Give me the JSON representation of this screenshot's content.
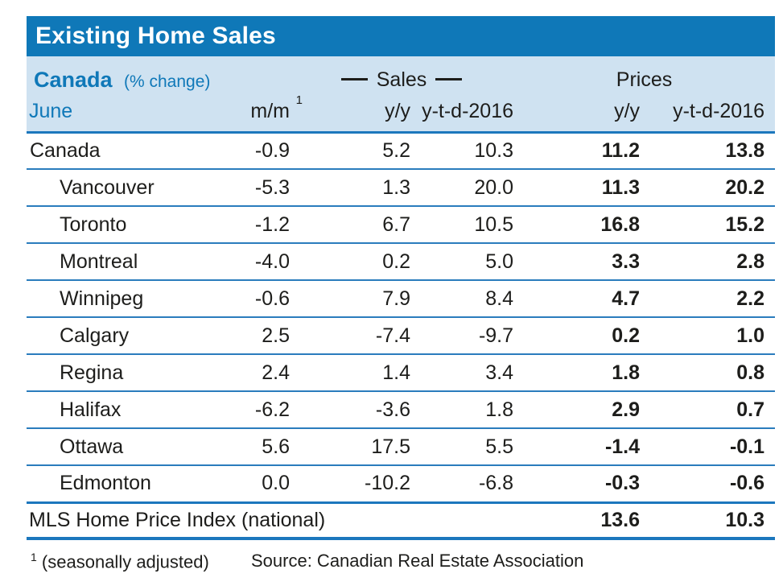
{
  "title": "Existing Home Sales",
  "colors": {
    "accent_blue": "#0f78b8",
    "band_blue": "#cfe2f1",
    "line_blue": "#1c77bd",
    "text_black": "#1d1d1b"
  },
  "header": {
    "region": "Canada",
    "unit": "(% change)",
    "group_sales": "Sales",
    "group_prices": "Prices",
    "month": "June",
    "col_mm": "m/m",
    "col_mm_sup": "1",
    "col_sales_yy": "y/y",
    "col_sales_ytd": "y-t-d-2016",
    "col_prices_yy": "y/y",
    "col_prices_ytd": "y-t-d-2016"
  },
  "rows": [
    {
      "label": "Canada",
      "mm": "-0.9",
      "sales_yy": "5.2",
      "sales_ytd": "10.3",
      "prices_yy": "11.2",
      "prices_ytd": "13.8"
    },
    {
      "label": "Vancouver",
      "mm": "-5.3",
      "sales_yy": "1.3",
      "sales_ytd": "20.0",
      "prices_yy": "11.3",
      "prices_ytd": "20.2"
    },
    {
      "label": "Toronto",
      "mm": "-1.2",
      "sales_yy": "6.7",
      "sales_ytd": "10.5",
      "prices_yy": "16.8",
      "prices_ytd": "15.2"
    },
    {
      "label": "Montreal",
      "mm": "-4.0",
      "sales_yy": "0.2",
      "sales_ytd": "5.0",
      "prices_yy": "3.3",
      "prices_ytd": "2.8"
    },
    {
      "label": "Winnipeg",
      "mm": "-0.6",
      "sales_yy": "7.9",
      "sales_ytd": "8.4",
      "prices_yy": "4.7",
      "prices_ytd": "2.2"
    },
    {
      "label": "Calgary",
      "mm": "2.5",
      "sales_yy": "-7.4",
      "sales_ytd": "-9.7",
      "prices_yy": "0.2",
      "prices_ytd": "1.0"
    },
    {
      "label": "Regina",
      "mm": "2.4",
      "sales_yy": "1.4",
      "sales_ytd": "3.4",
      "prices_yy": "1.8",
      "prices_ytd": "0.8"
    },
    {
      "label": "Halifax",
      "mm": "-6.2",
      "sales_yy": "-3.6",
      "sales_ytd": "1.8",
      "prices_yy": "2.9",
      "prices_ytd": "0.7"
    },
    {
      "label": "Ottawa",
      "mm": "5.6",
      "sales_yy": "17.5",
      "sales_ytd": "5.5",
      "prices_yy": "-1.4",
      "prices_ytd": "-0.1"
    },
    {
      "label": "Edmonton",
      "mm": "0.0",
      "sales_yy": "-10.2",
      "sales_ytd": "-6.8",
      "prices_yy": "-0.3",
      "prices_ytd": "-0.6"
    }
  ],
  "mls_row": {
    "label": "MLS Home Price Index (national)",
    "prices_yy": "13.6",
    "prices_ytd": "10.3"
  },
  "footer": {
    "footnote_sup": "1",
    "footnote": "(seasonally adjusted)",
    "source": "Source: Canadian Real Estate Association"
  },
  "chart_data": {
    "type": "table",
    "title": "Existing Home Sales",
    "subtitle": "Canada (% change), June",
    "column_groups": [
      "Sales",
      "Prices"
    ],
    "columns": [
      "m/m (seasonally adjusted)",
      "Sales y/y",
      "Sales y-t-d-2016",
      "Prices y/y",
      "Prices y-t-d-2016"
    ],
    "categories": [
      "Canada",
      "Vancouver",
      "Toronto",
      "Montreal",
      "Winnipeg",
      "Calgary",
      "Regina",
      "Halifax",
      "Ottawa",
      "Edmonton"
    ],
    "series": [
      {
        "name": "m/m",
        "values": [
          -0.9,
          -5.3,
          -1.2,
          -4.0,
          -0.6,
          2.5,
          2.4,
          -6.2,
          5.6,
          0.0
        ]
      },
      {
        "name": "Sales y/y",
        "values": [
          5.2,
          1.3,
          6.7,
          0.2,
          7.9,
          -7.4,
          1.4,
          -3.6,
          17.5,
          -10.2
        ]
      },
      {
        "name": "Sales y-t-d-2016",
        "values": [
          10.3,
          20.0,
          10.5,
          5.0,
          8.4,
          -9.7,
          3.4,
          1.8,
          5.5,
          -6.8
        ]
      },
      {
        "name": "Prices y/y",
        "values": [
          11.2,
          11.3,
          16.8,
          3.3,
          4.7,
          0.2,
          1.8,
          2.9,
          -1.4,
          -0.3
        ]
      },
      {
        "name": "Prices y-t-d-2016",
        "values": [
          13.8,
          20.2,
          15.2,
          2.8,
          2.2,
          1.0,
          0.8,
          0.7,
          -0.1,
          -0.6
        ]
      }
    ],
    "extra_rows": [
      {
        "label": "MLS Home Price Index (national)",
        "Prices y/y": 13.6,
        "Prices y-t-d-2016": 10.3
      }
    ],
    "source": "Canadian Real Estate Association"
  }
}
